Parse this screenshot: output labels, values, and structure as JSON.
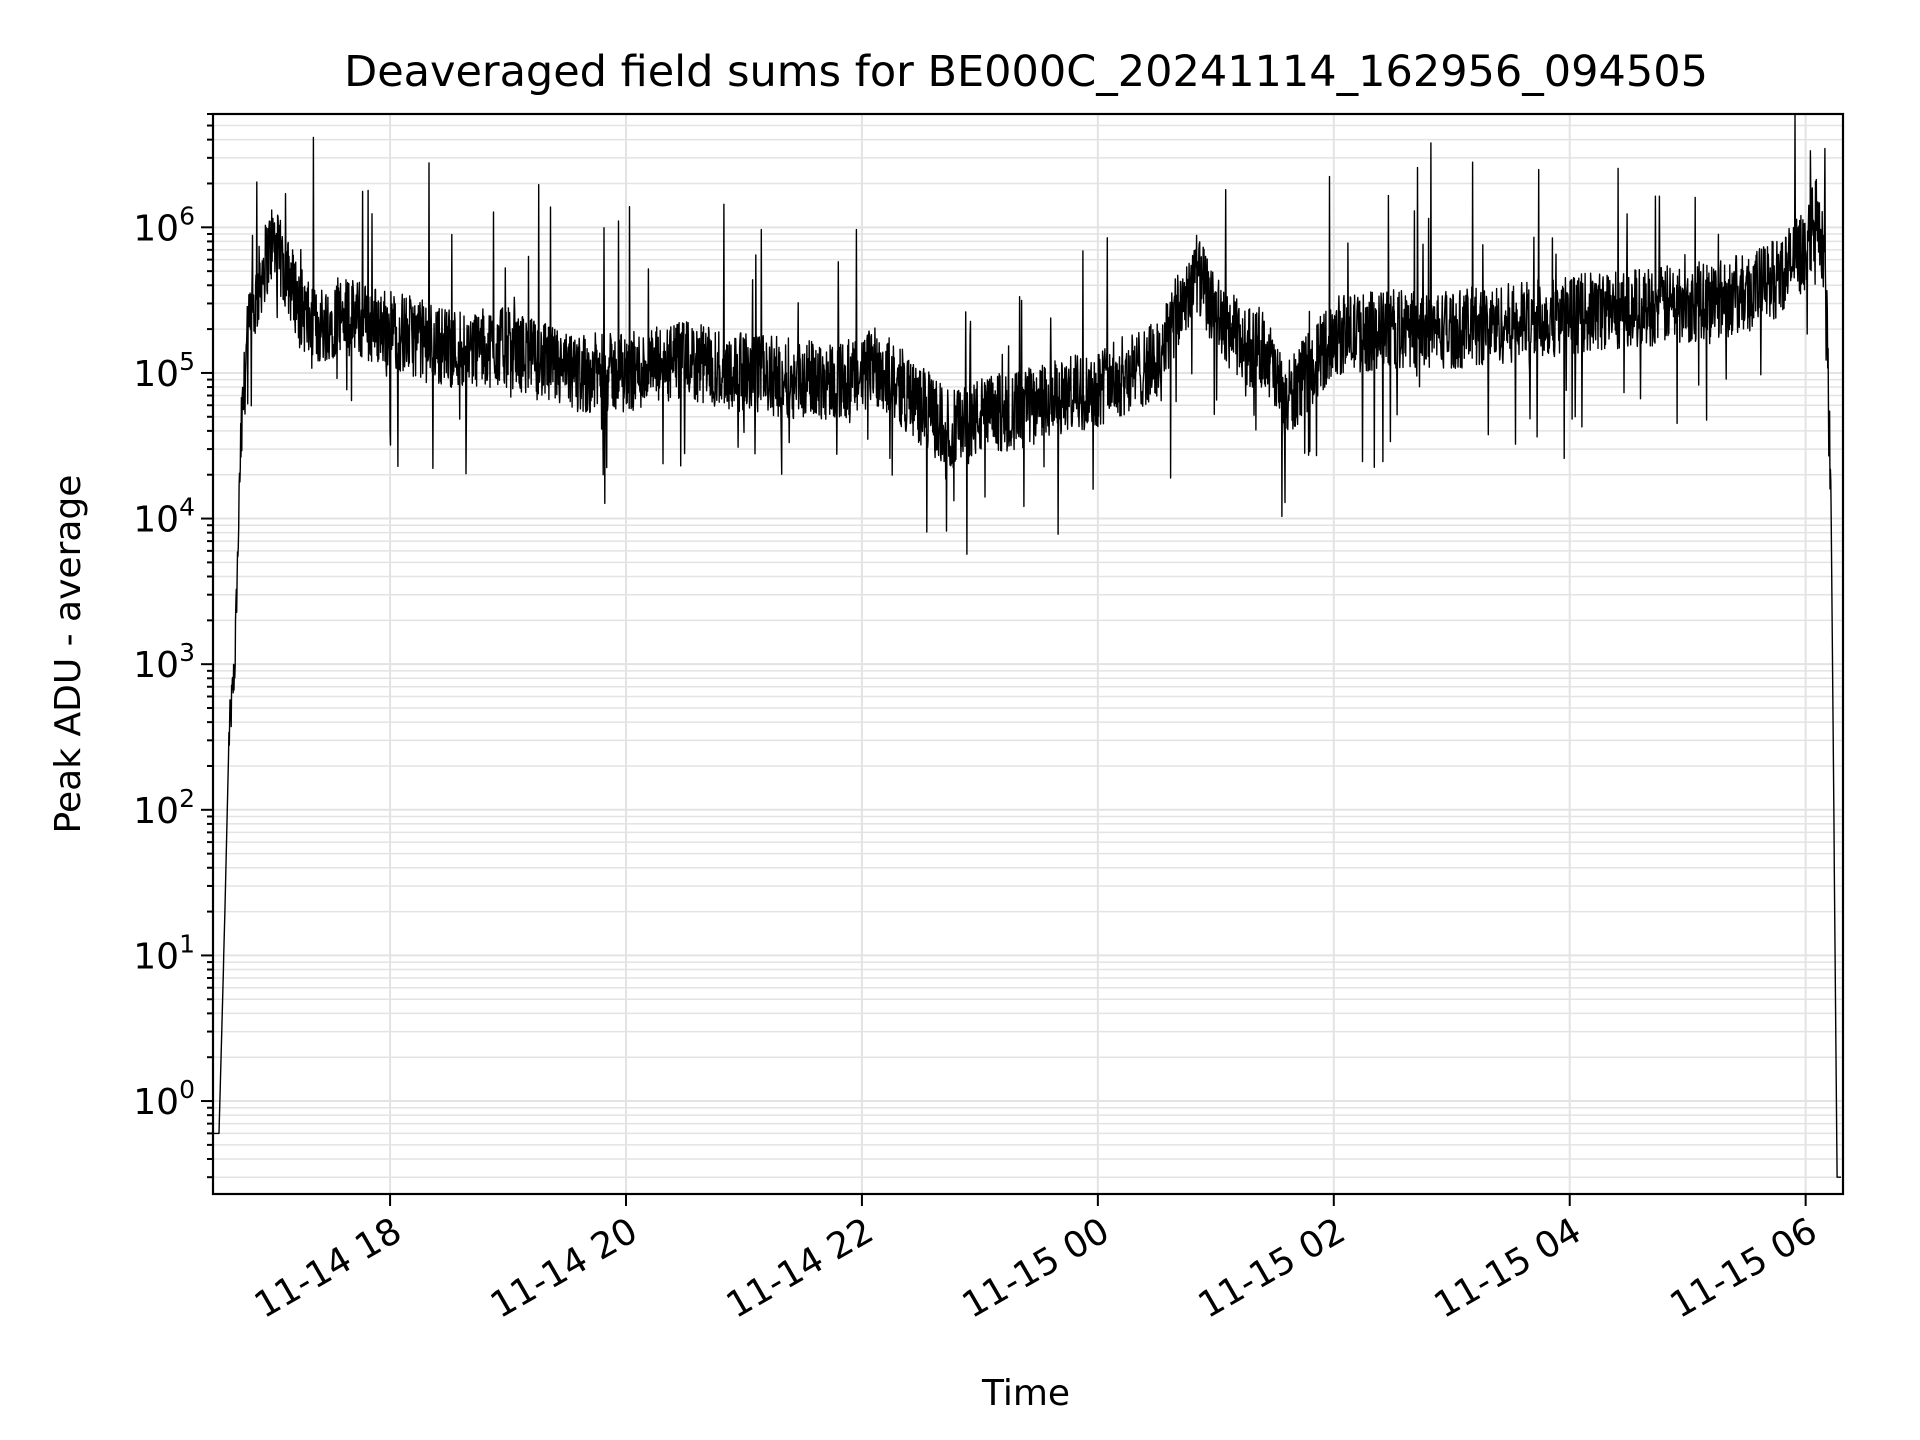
{
  "chart_data": {
    "type": "line",
    "title": "Deaveraged field sums for BE000C_20241114_162956_094505",
    "xlabel": "Time",
    "ylabel": "Peak ADU - average",
    "y_scale": "log",
    "ylim": [
      0.23,
      6000000
    ],
    "xlim": [
      "2024-11-14 16:29:56",
      "2024-11-15 06:19:00"
    ],
    "grid": true,
    "legend": "none",
    "line_color": "#000000",
    "x_ticks": [
      "11-14 18",
      "11-14 20",
      "11-14 22",
      "11-15 00",
      "11-15 02",
      "11-15 04",
      "11-15 06"
    ],
    "x_tick_times": [
      "2024-11-14 18:00",
      "2024-11-14 20:00",
      "2024-11-14 22:00",
      "2024-11-15 00:00",
      "2024-11-15 02:00",
      "2024-11-15 04:00",
      "2024-11-15 06:00"
    ],
    "y_ticks": [
      {
        "base": "10",
        "exp": "0",
        "value": 1
      },
      {
        "base": "10",
        "exp": "1",
        "value": 10
      },
      {
        "base": "10",
        "exp": "2",
        "value": 100
      },
      {
        "base": "10",
        "exp": "3",
        "value": 1000
      },
      {
        "base": "10",
        "exp": "4",
        "value": 10000
      },
      {
        "base": "10",
        "exp": "5",
        "value": 100000
      },
      {
        "base": "10",
        "exp": "6",
        "value": 1000000
      }
    ],
    "series": [
      {
        "x": [
          "2024-11-14 16:29:56",
          "2024-11-14 16:33",
          "2024-11-14 16:36",
          "2024-11-14 16:38",
          "2024-11-14 16:41",
          "2024-11-14 16:44",
          "2024-11-14 16:47",
          "2024-11-14 16:50",
          "2024-11-14 16:55",
          "2024-11-14 17:00",
          "2024-11-14 17:10",
          "2024-11-14 17:20",
          "2024-11-14 17:35",
          "2024-11-14 18:00",
          "2024-11-14 18:30",
          "2024-11-14 19:00",
          "2024-11-14 19:30",
          "2024-11-14 20:00",
          "2024-11-14 20:30",
          "2024-11-14 21:00",
          "2024-11-14 21:30",
          "2024-11-14 22:00",
          "2024-11-14 22:05",
          "2024-11-14 22:30",
          "2024-11-14 22:45",
          "2024-11-14 23:00",
          "2024-11-14 23:30",
          "2024-11-15 00:00",
          "2024-11-15 00:30",
          "2024-11-15 00:50",
          "2024-11-15 01:00",
          "2024-11-15 01:15",
          "2024-11-15 01:25",
          "2024-11-15 01:35",
          "2024-11-15 02:00",
          "2024-11-15 02:30",
          "2024-11-15 03:00",
          "2024-11-15 03:30",
          "2024-11-15 04:00",
          "2024-11-15 04:30",
          "2024-11-15 05:00",
          "2024-11-15 05:30",
          "2024-11-15 05:45",
          "2024-11-15 06:00",
          "2024-11-15 06:05",
          "2024-11-15 06:10",
          "2024-11-15 06:13",
          "2024-11-15 06:16",
          "2024-11-15 06:18"
        ],
        "y": [
          0.6,
          0.6,
          20,
          300,
          1000,
          30000,
          150000,
          250000,
          500000,
          800000,
          400000,
          200000,
          250000,
          200000,
          150000,
          150000,
          100000,
          100000,
          120000,
          100000,
          90000,
          90000,
          120000,
          60000,
          40000,
          50000,
          60000,
          80000,
          120000,
          500000,
          250000,
          150000,
          150000,
          60000,
          180000,
          200000,
          200000,
          220000,
          250000,
          280000,
          300000,
          350000,
          450000,
          700000,
          1200000,
          600000,
          10000,
          0.3,
          0.3
        ]
      }
    ]
  }
}
